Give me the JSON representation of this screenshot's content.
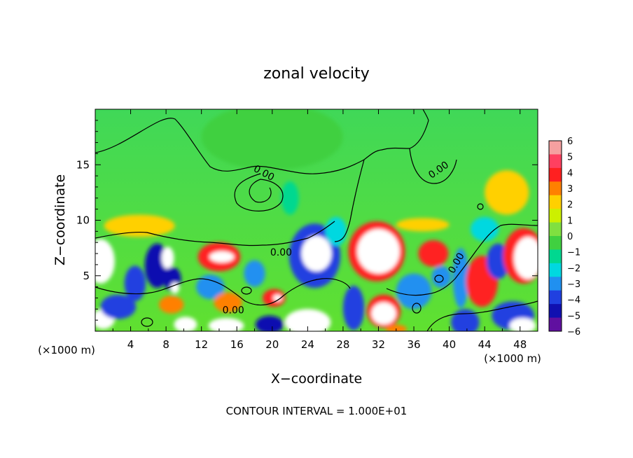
{
  "chart_data": {
    "type": "heatmap",
    "title": "zonal velocity",
    "xlabel": "X−coordinate",
    "ylabel": "Z−coordinate",
    "x_unit_note": "(×1000 m)",
    "z_unit_note": "(×1000 m)",
    "footer": "CONTOUR INTERVAL = 1.000E+01",
    "xlim": [
      0,
      50
    ],
    "ylim": [
      0,
      20
    ],
    "x_ticks": [
      4,
      8,
      12,
      16,
      20,
      24,
      28,
      32,
      36,
      40,
      44,
      48
    ],
    "y_ticks": [
      5,
      10,
      15
    ],
    "colorbar": {
      "range": [
        -6,
        6
      ],
      "ticks": [
        6,
        5,
        4,
        3,
        2,
        1,
        0,
        -1,
        -2,
        -3,
        -4,
        -5,
        -6
      ],
      "tick_labels": [
        "6",
        "5",
        "4",
        "3",
        "2",
        "1",
        "0",
        "−1",
        "−2",
        "−3",
        "−4",
        "−5",
        "−6"
      ],
      "colors": [
        "#f5a0a0",
        "#ff4060",
        "#ff2020",
        "#ff8000",
        "#ffd000",
        "#ccf000",
        "#80e040",
        "#40d040",
        "#00d890",
        "#00d8e0",
        "#2090f0",
        "#2040e0",
        "#1010b0",
        "#6010a0"
      ]
    },
    "contour_labels": [
      {
        "text": "0.00",
        "x": 18.9,
        "z": 14.0,
        "angle": 28
      },
      {
        "text": "0.00",
        "x": 39.0,
        "z": 14.3,
        "angle": -35
      },
      {
        "text": "0.00",
        "x": 21.0,
        "z": 6.8,
        "angle": 0
      },
      {
        "text": "0.00",
        "x": 41.1,
        "z": 6.0,
        "angle": -60
      },
      {
        "text": "0.00",
        "x": 15.6,
        "z": 1.6,
        "angle": 0
      }
    ],
    "background": {
      "upper_color": "#40d858",
      "lower_color": "#60e030"
    },
    "features": [
      {
        "x": 0.6,
        "z": 6.3,
        "rx": 1.6,
        "rz": 2.0,
        "u": 8
      },
      {
        "x": 0.9,
        "z": 1.1,
        "rx": 1.3,
        "rz": 0.9,
        "u": 8
      },
      {
        "x": 4.5,
        "z": 4.3,
        "rx": 1.2,
        "rz": 1.6,
        "u": -4
      },
      {
        "x": 7.0,
        "z": 5.9,
        "rx": 1.4,
        "rz": 2.0,
        "u": -5
      },
      {
        "x": 8.2,
        "z": 6.6,
        "rx": 0.7,
        "rz": 1.0,
        "u": 9
      },
      {
        "x": 8.7,
        "z": 4.7,
        "rx": 1.0,
        "rz": 1.1,
        "u": -5
      },
      {
        "x": 9.0,
        "z": 3.9,
        "rx": 0.5,
        "rz": 0.5,
        "u": 9
      },
      {
        "x": 8.6,
        "z": 2.4,
        "rx": 1.4,
        "rz": 0.8,
        "u": 3
      },
      {
        "x": 10.2,
        "z": 0.6,
        "rx": 1.3,
        "rz": 0.7,
        "u": 8
      },
      {
        "x": 14.0,
        "z": 6.7,
        "rx": 2.4,
        "rz": 1.3,
        "u": 4
      },
      {
        "x": 14.3,
        "z": 6.7,
        "rx": 1.4,
        "rz": 0.5,
        "u": 9
      },
      {
        "x": 13.0,
        "z": 4.0,
        "rx": 1.6,
        "rz": 1.1,
        "u": -3
      },
      {
        "x": 15.0,
        "z": 2.6,
        "rx": 1.6,
        "rz": 0.9,
        "u": 3
      },
      {
        "x": 14.8,
        "z": 0.5,
        "rx": 2.0,
        "rz": 0.7,
        "u": 8
      },
      {
        "x": 18.0,
        "z": 5.2,
        "rx": 1.2,
        "rz": 1.2,
        "u": -3
      },
      {
        "x": 20.2,
        "z": 3.0,
        "rx": 1.3,
        "rz": 0.8,
        "u": 4
      },
      {
        "x": 20.6,
        "z": 3.0,
        "rx": 0.5,
        "rz": 0.3,
        "u": 9
      },
      {
        "x": 19.7,
        "z": 0.6,
        "rx": 1.6,
        "rz": 0.8,
        "u": -5
      },
      {
        "x": 24.8,
        "z": 6.8,
        "rx": 2.9,
        "rz": 2.9,
        "u": -4
      },
      {
        "x": 25.0,
        "z": 7.0,
        "rx": 1.7,
        "rz": 1.6,
        "u": 9
      },
      {
        "x": 27.2,
        "z": 9.0,
        "rx": 1.2,
        "rz": 1.3,
        "u": -2
      },
      {
        "x": 24.0,
        "z": 0.8,
        "rx": 2.6,
        "rz": 1.2,
        "u": 8
      },
      {
        "x": 31.8,
        "z": 7.2,
        "rx": 3.2,
        "rz": 2.7,
        "u": 4
      },
      {
        "x": 32.0,
        "z": 7.2,
        "rx": 2.4,
        "rz": 2.0,
        "u": 9
      },
      {
        "x": 29.2,
        "z": 2.1,
        "rx": 1.2,
        "rz": 2.0,
        "u": -4
      },
      {
        "x": 32.6,
        "z": 1.8,
        "rx": 1.9,
        "rz": 1.5,
        "u": 4
      },
      {
        "x": 32.6,
        "z": 1.6,
        "rx": 1.4,
        "rz": 1.0,
        "u": 9
      },
      {
        "x": 34.0,
        "z": 0.2,
        "rx": 1.2,
        "rz": 0.4,
        "u": 3
      },
      {
        "x": 36.0,
        "z": 3.6,
        "rx": 2.0,
        "rz": 1.6,
        "u": -3
      },
      {
        "x": 38.2,
        "z": 7.0,
        "rx": 1.7,
        "rz": 1.2,
        "u": 4
      },
      {
        "x": 39.1,
        "z": 4.9,
        "rx": 1.1,
        "rz": 1.0,
        "u": -3
      },
      {
        "x": 41.3,
        "z": 4.8,
        "rx": 0.9,
        "rz": 2.7,
        "u": -3
      },
      {
        "x": 43.7,
        "z": 4.5,
        "rx": 1.8,
        "rz": 2.3,
        "u": 4
      },
      {
        "x": 45.5,
        "z": 6.3,
        "rx": 1.3,
        "rz": 1.6,
        "u": -4
      },
      {
        "x": 41.8,
        "z": 0.8,
        "rx": 1.6,
        "rz": 1.2,
        "u": -4
      },
      {
        "x": 48.4,
        "z": 6.8,
        "rx": 2.3,
        "rz": 2.5,
        "u": 4
      },
      {
        "x": 48.9,
        "z": 6.6,
        "rx": 1.6,
        "rz": 1.9,
        "u": 9
      },
      {
        "x": 47.2,
        "z": 1.4,
        "rx": 2.4,
        "rz": 1.3,
        "u": -4
      },
      {
        "x": 48.3,
        "z": 0.5,
        "rx": 1.5,
        "rz": 0.7,
        "u": 9
      },
      {
        "x": 2.6,
        "z": 2.2,
        "rx": 2.0,
        "rz": 1.1,
        "u": -4
      },
      {
        "x": 44.0,
        "z": 9.2,
        "rx": 1.6,
        "rz": 1.1,
        "u": -2
      },
      {
        "x": 46.5,
        "z": 12.5,
        "rx": 2.5,
        "rz": 2.0,
        "u": 2
      },
      {
        "x": 5.0,
        "z": 9.5,
        "rx": 4.0,
        "rz": 1.0,
        "u": 2
      },
      {
        "x": 37.0,
        "z": 9.6,
        "rx": 3.0,
        "rz": 0.6,
        "u": 2
      },
      {
        "x": 22.0,
        "z": 12.0,
        "rx": 1.0,
        "rz": 1.5,
        "u": -1.5
      },
      {
        "x": 20.0,
        "z": 17.5,
        "rx": 8.0,
        "rz": 3.0,
        "u": -0.6
      }
    ]
  }
}
